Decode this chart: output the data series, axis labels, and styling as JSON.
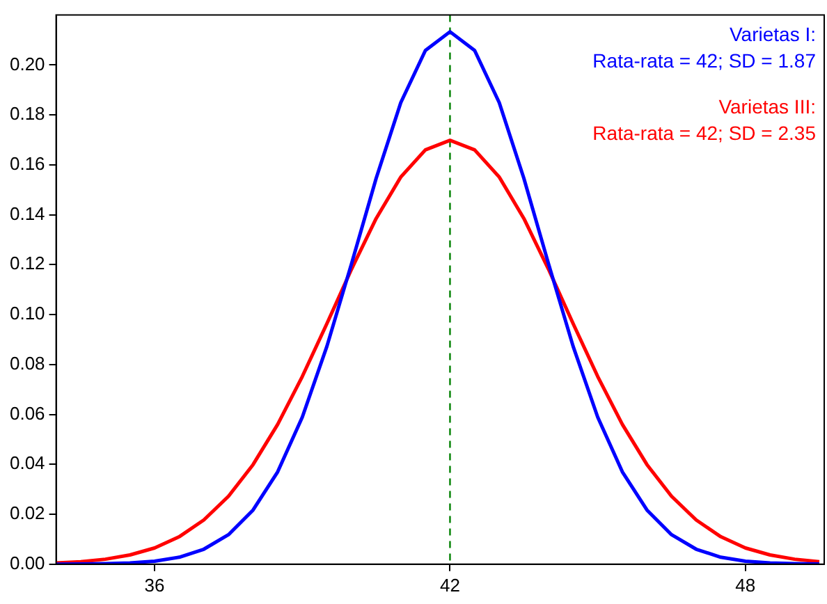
{
  "chart_data": {
    "type": "line",
    "x": [
      34,
      34.5,
      35,
      35.5,
      36,
      36.5,
      37,
      37.5,
      38,
      38.5,
      39,
      39.5,
      40,
      40.5,
      41,
      41.5,
      42,
      42.5,
      43,
      43.5,
      44,
      44.5,
      45,
      45.5,
      46,
      46.5,
      47,
      47.5,
      48,
      48.5,
      49,
      49.5
    ],
    "series": [
      {
        "name": "Varietas I:",
        "color": "#0000ff",
        "values": [
          0.0,
          0.0001,
          0.0002,
          0.0005,
          0.0012,
          0.0028,
          0.006,
          0.0118,
          0.0217,
          0.037,
          0.0589,
          0.0873,
          0.1204,
          0.1546,
          0.1849,
          0.2058,
          0.2133,
          0.2058,
          0.1849,
          0.1546,
          0.1204,
          0.0873,
          0.0589,
          0.037,
          0.0217,
          0.0118,
          0.006,
          0.0028,
          0.0012,
          0.0005,
          0.0002,
          0.0001
        ]
      },
      {
        "name": "Varietas III:",
        "color": "#ff0000",
        "values": [
          0.0005,
          0.001,
          0.002,
          0.0037,
          0.0065,
          0.011,
          0.0177,
          0.0272,
          0.0399,
          0.056,
          0.0752,
          0.0964,
          0.1182,
          0.1385,
          0.1551,
          0.166,
          0.1698,
          0.166,
          0.1551,
          0.1385,
          0.1182,
          0.0964,
          0.0752,
          0.056,
          0.0399,
          0.0272,
          0.0177,
          0.011,
          0.0065,
          0.0037,
          0.002,
          0.001
        ]
      }
    ],
    "annotations": [
      "Rata-rata = 42; SD = 1.87",
      "Rata-rata = 42; SD = 2.35"
    ],
    "legend": "top right",
    "marker": "none",
    "line_style": "solid",
    "grid": false,
    "xlim": [
      34,
      49.6
    ],
    "xticks": [
      36,
      42,
      48
    ],
    "ylim": [
      0,
      0.22
    ],
    "yticks": [
      {
        "value": 0,
        "label": "0.00"
      },
      {
        "value": 0.02,
        "label": "0.02"
      },
      {
        "value": 0.04,
        "label": "0.04"
      },
      {
        "value": 0.06,
        "label": "0.06"
      },
      {
        "value": 0.08,
        "label": "0.08"
      },
      {
        "value": 0.1,
        "label": "0.10"
      },
      {
        "value": 0.12,
        "label": "0.12"
      },
      {
        "value": 0.14,
        "label": "0.14"
      },
      {
        "value": 0.16,
        "label": "0.16"
      },
      {
        "value": 0.18,
        "label": "0.18"
      },
      {
        "value": 0.2,
        "label": "0.20"
      }
    ],
    "ref_lines": [
      {
        "axis": "x",
        "value": 42,
        "color": "#008000",
        "line_style": "dashed"
      }
    ]
  }
}
